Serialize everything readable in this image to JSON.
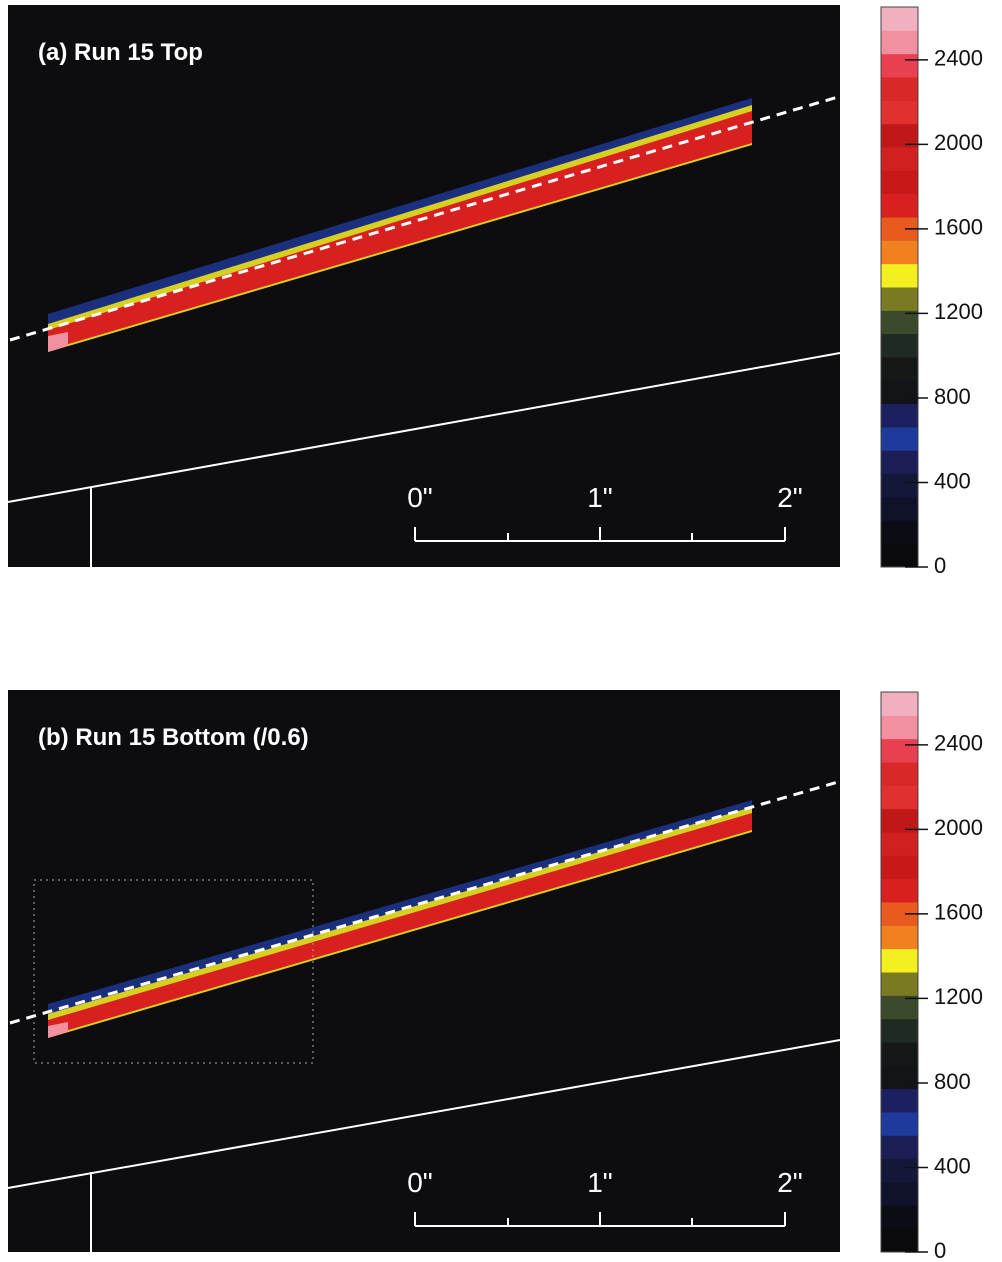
{
  "panels": [
    {
      "label": "(a) Run 15 Top",
      "scale_labels": [
        "0\"",
        "1\"",
        "2\""
      ],
      "colorbar": {
        "lim": [
          0,
          2650
        ],
        "ticks": [
          0,
          400,
          800,
          1200,
          1600,
          2000,
          2400
        ]
      }
    },
    {
      "label": "(b) Run 15 Bottom (/0.6)",
      "scale_labels": [
        "0\"",
        "1\"",
        "2\""
      ],
      "colorbar": {
        "lim": [
          0,
          2650
        ],
        "ticks": [
          0,
          400,
          800,
          1200,
          1600,
          2000,
          2400
        ]
      }
    }
  ],
  "colormap": [
    "#0a0a0c",
    "#0c0c14",
    "#10112a",
    "#141838",
    "#1a1e55",
    "#1e3a9a",
    "#1c2060",
    "#121418",
    "#141816",
    "#1e2a22",
    "#3a4a2a",
    "#7a7a22",
    "#f4f020",
    "#f08020",
    "#e85a20",
    "#d82020",
    "#c81818",
    "#d02020",
    "#c01818",
    "#e03030",
    "#d82828",
    "#e84050",
    "#f090a0",
    "#f0b0c0"
  ]
}
